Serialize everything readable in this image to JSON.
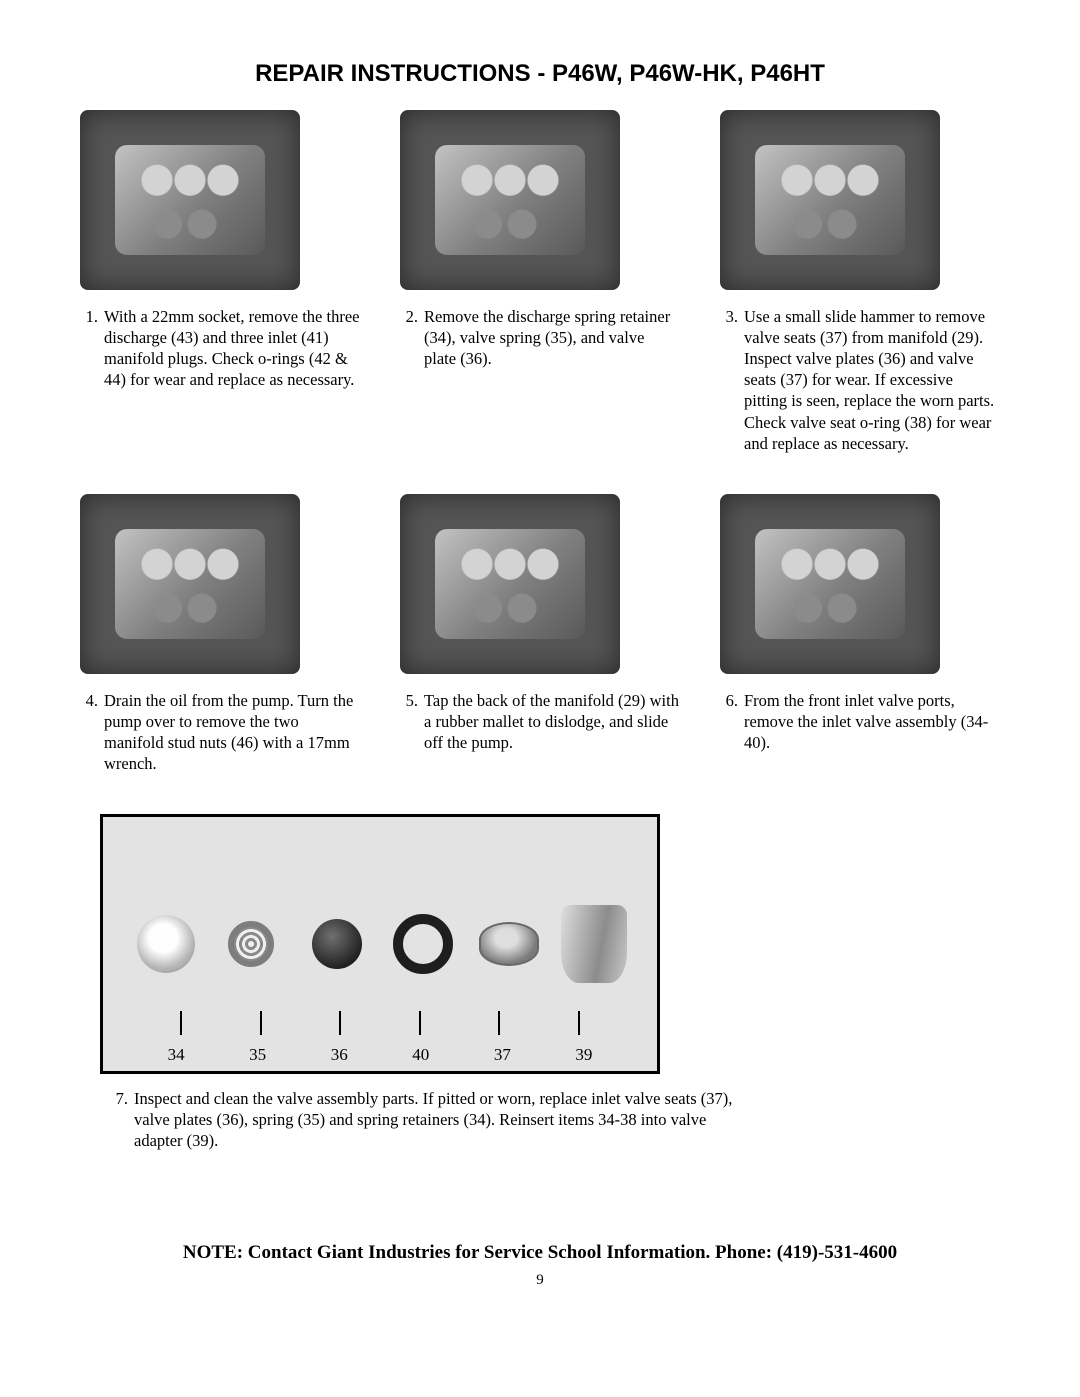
{
  "title": "REPAIR INSTRUCTIONS - P46W, P46W-HK, P46HT",
  "steps": [
    {
      "num": "1.",
      "text": "With a 22mm socket, remove the three discharge (43) and three inlet (41) manifold plugs. Check o-rings (42 & 44) for wear and replace as necessary."
    },
    {
      "num": "2.",
      "text": "Remove the discharge spring retainer (34), valve spring (35), and valve plate (36)."
    },
    {
      "num": "3.",
      "text": "Use a small slide hammer to remove valve seats (37) from manifold (29). Inspect valve plates (36) and valve seats (37) for wear.  If excessive pitting is seen, replace the worn parts. Check valve seat o-ring (38) for wear and replace as necessary."
    },
    {
      "num": "4.",
      "text": "Drain the oil from the pump. Turn the pump over to remove the two manifold stud nuts (46) with a 17mm wrench."
    },
    {
      "num": "5.",
      "text": "Tap the back of the manifold (29) with a rubber mallet to dislodge, and slide off the pump."
    },
    {
      "num": "6.",
      "text": "From the front inlet valve ports, remove the inlet valve assembly (34-40)."
    }
  ],
  "part_labels": [
    "34",
    "35",
    "36",
    "40",
    "37",
    "39"
  ],
  "step7": {
    "num": "7.",
    "text": "Inspect and clean the valve assembly parts.  If pitted or worn, replace inlet valve seats (37), valve plates (36), spring (35) and spring retainers (34). Reinsert items 34-38 into valve adapter (39)."
  },
  "note": "NOTE:  Contact Giant Industries for Service School Information.  Phone: (419)-531-4600",
  "page_number": "9"
}
